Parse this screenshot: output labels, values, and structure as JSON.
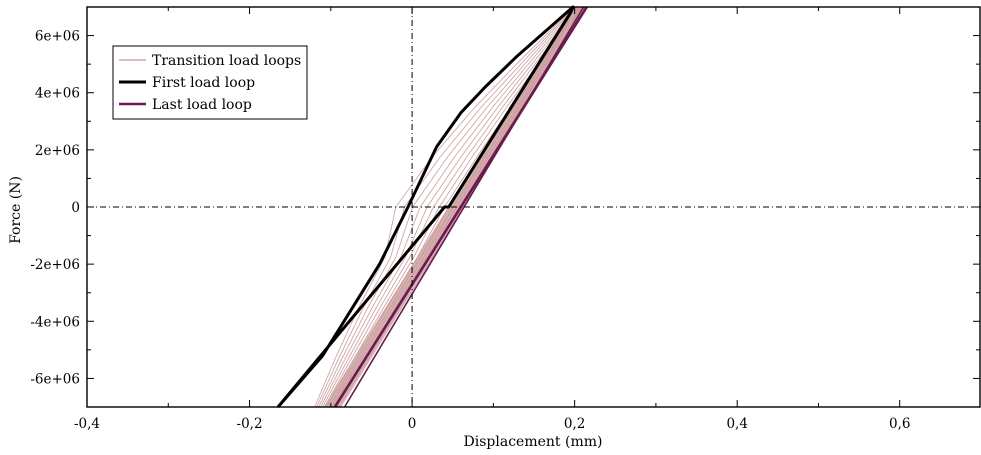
{
  "chart_data": {
    "type": "line",
    "title": "",
    "xlabel": "Displacement (mm)",
    "ylabel": "Force (N)",
    "xlim": [
      -0.4,
      0.7
    ],
    "ylim": [
      -7000000,
      7000000
    ],
    "x_ticks": [
      -0.4,
      -0.2,
      0,
      0.2,
      0.4,
      0.6
    ],
    "x_tick_labels": [
      "-0,4",
      "-0,2",
      "0",
      "0,2",
      "0,4",
      "0,6"
    ],
    "y_ticks": [
      6000000,
      4000000,
      2000000,
      0,
      -2000000,
      -4000000,
      -6000000
    ],
    "y_tick_labels": [
      "6e+06",
      "4e+06",
      "2e+06",
      "0",
      "-2e+06",
      "-4e+06",
      "-6e+06"
    ],
    "reference_lines": {
      "x": 0,
      "y": 0,
      "style": "dash-dot"
    },
    "legend": {
      "position": "top-left"
    },
    "series": [
      {
        "name": "Transition load loops",
        "color": "#c89898",
        "style": "thin",
        "loops_count": 14,
        "note_first_loop_offset": -0.12,
        "note_last_loop_offset": -0.088
      },
      {
        "name": "First load loop",
        "color": "#000000",
        "style": "thick",
        "x": [
          -0.165,
          -0.11,
          -0.04,
          -0.005,
          0.03,
          0.06,
          0.09,
          0.13,
          0.198,
          0.195,
          0.045,
          0.04,
          -0.165
        ],
        "y": [
          -7000000,
          -5200000,
          -2000000,
          0,
          2100000,
          3300000,
          4200000,
          5300000,
          7000000,
          6800000,
          0,
          0,
          -7000000
        ]
      },
      {
        "name": "Last load loop",
        "color": "#6b1a4f",
        "style": "medium",
        "x": [
          -0.095,
          0.215
        ],
        "y": [
          -7000000,
          7000000
        ]
      }
    ]
  }
}
